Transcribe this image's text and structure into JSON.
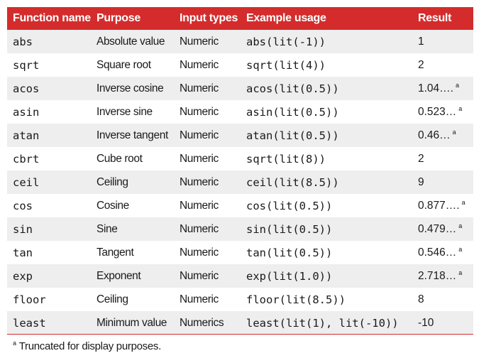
{
  "headers": {
    "function_name": "Function name",
    "purpose": "Purpose",
    "input_types": "Input types",
    "example_usage": "Example usage",
    "result": "Result"
  },
  "rows": [
    {
      "name": "abs",
      "purpose": "Absolute value",
      "input": "Numeric",
      "example": "abs(lit(-1))",
      "result": "1",
      "mark": ""
    },
    {
      "name": "sqrt",
      "purpose": "Square root",
      "input": "Numeric",
      "example": "sqrt(lit(4))",
      "result": "2",
      "mark": ""
    },
    {
      "name": "acos",
      "purpose": "Inverse cosine",
      "input": "Numeric",
      "example": "acos(lit(0.5))",
      "result": "1.04….",
      "mark": "a"
    },
    {
      "name": "asin",
      "purpose": "Inverse sine",
      "input": "Numeric",
      "example": "asin(lit(0.5))",
      "result": "0.523…",
      "mark": "a"
    },
    {
      "name": "atan",
      "purpose": "Inverse tangent",
      "input": "Numeric",
      "example": "atan(lit(0.5))",
      "result": "0.46…",
      "mark": "a"
    },
    {
      "name": "cbrt",
      "purpose": "Cube root",
      "input": "Numeric",
      "example": "sqrt(lit(8))",
      "result": "2",
      "mark": ""
    },
    {
      "name": "ceil",
      "purpose": "Ceiling",
      "input": "Numeric",
      "example": "ceil(lit(8.5))",
      "result": "9",
      "mark": ""
    },
    {
      "name": "cos",
      "purpose": "Cosine",
      "input": "Numeric",
      "example": "cos(lit(0.5))",
      "result": "0.877….",
      "mark": "a"
    },
    {
      "name": "sin",
      "purpose": "Sine",
      "input": "Numeric",
      "example": "sin(lit(0.5))",
      "result": "0.479…",
      "mark": "a"
    },
    {
      "name": "tan",
      "purpose": "Tangent",
      "input": "Numeric",
      "example": "tan(lit(0.5))",
      "result": "0.546…",
      "mark": "a"
    },
    {
      "name": "exp",
      "purpose": "Exponent",
      "input": "Numeric",
      "example": "exp(lit(1.0))",
      "result": "2.718…",
      "mark": "a"
    },
    {
      "name": "floor",
      "purpose": "Ceiling",
      "input": "Numeric",
      "example": "floor(lit(8.5))",
      "result": "8",
      "mark": ""
    },
    {
      "name": "least",
      "purpose": "Minimum value",
      "input": "Numerics",
      "example": "least(lit(1), lit(-10))",
      "result": "-10",
      "mark": ""
    }
  ],
  "footnote": {
    "mark": "a",
    "text": "Truncated for display purposes."
  },
  "colors": {
    "header_bg": "#d42c2c",
    "row_shade": "#eeeeee"
  }
}
